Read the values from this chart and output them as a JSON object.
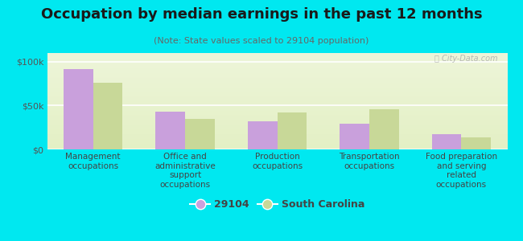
{
  "title": "Occupation by median earnings in the past 12 months",
  "subtitle": "(Note: State values scaled to 29104 population)",
  "categories": [
    "Management\noccupations",
    "Office and\nadministrative\nsupport\noccupations",
    "Production\noccupations",
    "Transportation\noccupations",
    "Food preparation\nand serving\nrelated\noccupations"
  ],
  "values_29104": [
    92000,
    43000,
    32000,
    29000,
    17000
  ],
  "values_sc": [
    76000,
    35000,
    42000,
    46000,
    14000
  ],
  "color_29104": "#c9a0dc",
  "color_sc": "#c8d898",
  "background_outer": "#00e8f0",
  "ylim": [
    0,
    110000
  ],
  "yticks": [
    0,
    50000,
    100000
  ],
  "ytick_labels": [
    "$0",
    "$50k",
    "$100k"
  ],
  "bar_width": 0.32,
  "legend_label_1": "29104",
  "legend_label_2": "South Carolina",
  "watermark": "ⓘ City-Data.com",
  "title_fontsize": 13,
  "subtitle_fontsize": 8,
  "tick_label_fontsize": 7.5,
  "ytick_fontsize": 8
}
